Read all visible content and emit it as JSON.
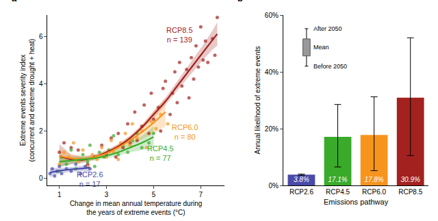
{
  "chart_data": [
    {
      "type": "scatter",
      "panel_label": "a",
      "xlabel": [
        "Change in mean annual temperature during",
        "the years of extreme events (°C)"
      ],
      "ylabel": [
        "Extreme events severity index",
        "(concurrent and extreme drought + heat)"
      ],
      "xlim": [
        0.5,
        8
      ],
      "xticks": [
        1,
        3,
        5,
        7
      ],
      "ylim": [
        -0.3,
        6.9
      ],
      "yticks": [
        0,
        2,
        4,
        6
      ],
      "grid": false,
      "series": [
        {
          "name": "RCP8.5",
          "color": "#a3221f",
          "marker": "circle",
          "x": [
            1.0,
            1.2,
            1.5,
            1.8,
            2.2,
            2.5,
            2.8,
            3.0,
            3.2,
            3.4,
            3.5,
            3.7,
            3.9,
            4.0,
            4.2,
            4.3,
            4.5,
            4.6,
            4.8,
            4.9,
            5.0,
            5.2,
            5.3,
            5.4,
            5.5,
            5.7,
            5.8,
            5.9,
            6.0,
            6.1,
            6.2,
            6.4,
            6.5,
            6.6,
            6.7,
            6.8,
            6.9,
            7.0,
            7.1,
            7.2,
            7.3,
            7.5,
            7.6,
            7.7
          ],
          "values": [
            1.1,
            1.5,
            1.3,
            1.2,
            0.6,
            0.9,
            1.4,
            1.0,
            1.7,
            0.9,
            1.9,
            1.3,
            2.3,
            1.5,
            2.8,
            1.6,
            2.2,
            3.1,
            1.9,
            3.6,
            2.5,
            3.0,
            2.0,
            3.8,
            4.1,
            2.7,
            3.6,
            4.5,
            3.2,
            4.9,
            3.9,
            4.6,
            3.4,
            5.1,
            4.2,
            5.6,
            4.7,
            6.4,
            5.0,
            5.8,
            4.9,
            5.9,
            5.2,
            6.8
          ],
          "fit": {
            "x": [
              1.0,
              1.5,
              2.0,
              2.5,
              3.0,
              3.5,
              4.0,
              4.5,
              5.0,
              5.5,
              6.0,
              6.5,
              7.0,
              7.5,
              7.7
            ],
            "values": [
              0.95,
              0.8,
              0.78,
              0.9,
              1.1,
              1.35,
              1.7,
              2.15,
              2.7,
              3.25,
              3.9,
              4.55,
              5.2,
              5.85,
              6.1
            ],
            "lower": [
              0.5,
              0.6,
              0.65,
              0.8,
              1.0,
              1.25,
              1.6,
              2.05,
              2.55,
              3.1,
              3.7,
              4.3,
              4.9,
              5.45,
              5.6
            ],
            "upper": [
              1.45,
              1.0,
              0.92,
              1.0,
              1.2,
              1.45,
              1.8,
              2.25,
              2.85,
              3.4,
              4.1,
              4.8,
              5.5,
              6.25,
              6.6
            ]
          }
        },
        {
          "name": "RCP6.0",
          "color": "#f7941d",
          "marker": "circle",
          "x": [
            1.0,
            1.2,
            1.4,
            1.6,
            1.8,
            2.0,
            2.2,
            2.4,
            2.6,
            2.8,
            3.0,
            3.2,
            3.3,
            3.5,
            3.6,
            3.8,
            4.0,
            4.1,
            4.3,
            4.5,
            4.7,
            4.9,
            5.1,
            5.3,
            5.6
          ],
          "values": [
            0.6,
            1.1,
            0.9,
            1.5,
            0.7,
            1.2,
            0.5,
            1.0,
            0.8,
            1.3,
            0.9,
            1.6,
            1.1,
            0.8,
            1.5,
            1.9,
            1.4,
            2.3,
            1.7,
            2.0,
            1.3,
            2.4,
            2.1,
            2.7,
            2.3
          ],
          "fit": {
            "x": [
              1.0,
              1.5,
              2.0,
              2.5,
              3.0,
              3.5,
              4.0,
              4.5,
              5.0,
              5.5
            ],
            "values": [
              0.95,
              0.85,
              0.82,
              0.9,
              1.05,
              1.3,
              1.6,
              1.95,
              2.35,
              2.8
            ],
            "lower": [
              0.65,
              0.7,
              0.7,
              0.8,
              0.95,
              1.15,
              1.4,
              1.65,
              1.9,
              2.2
            ],
            "upper": [
              1.25,
              1.0,
              0.94,
              1.0,
              1.15,
              1.45,
              1.8,
              2.25,
              2.8,
              3.4
            ]
          }
        },
        {
          "name": "RCP4.5",
          "color": "#3aaa2a",
          "marker": "circle",
          "x": [
            1.0,
            1.1,
            1.3,
            1.5,
            1.7,
            1.9,
            2.0,
            2.2,
            2.3,
            2.5,
            2.7,
            2.9,
            3.1,
            3.3,
            3.5,
            3.7,
            3.9,
            4.1,
            4.3,
            4.5,
            4.8,
            5.0
          ],
          "values": [
            0.3,
            0.9,
            0.6,
            1.2,
            0.4,
            0.8,
            1.0,
            0.7,
            1.4,
            0.5,
            1.1,
            0.9,
            1.2,
            1.8,
            1.0,
            1.4,
            1.1,
            1.6,
            1.9,
            1.3,
            1.5,
            1.9
          ],
          "fit": {
            "x": [
              1.0,
              1.5,
              2.0,
              2.5,
              3.0,
              3.5,
              4.0,
              4.5,
              5.0
            ],
            "values": [
              0.7,
              0.75,
              0.8,
              0.85,
              0.95,
              1.1,
              1.3,
              1.5,
              1.75
            ],
            "lower": [
              0.45,
              0.6,
              0.7,
              0.75,
              0.85,
              0.95,
              1.1,
              1.2,
              1.3
            ],
            "upper": [
              0.95,
              0.9,
              0.9,
              0.95,
              1.05,
              1.25,
              1.5,
              1.8,
              2.2
            ]
          }
        },
        {
          "name": "RCP2.6",
          "color": "#4a4aa8",
          "marker": "circle",
          "x": [
            0.6,
            0.7,
            0.8,
            0.9,
            1.0,
            1.1,
            1.3,
            1.5,
            1.7,
            1.9,
            2.1,
            2.3
          ],
          "values": [
            0.2,
            0.4,
            0.1,
            0.3,
            0.5,
            0.2,
            0.4,
            0.3,
            0.6,
            0.2,
            0.5,
            0.4
          ],
          "fit": {
            "x": [
              0.6,
              1.0,
              1.5,
              2.0,
              2.3
            ],
            "values": [
              0.25,
              0.32,
              0.38,
              0.42,
              0.45
            ],
            "lower": [
              0.05,
              0.2,
              0.28,
              0.3,
              0.28
            ],
            "upper": [
              0.45,
              0.44,
              0.48,
              0.54,
              0.62
            ]
          }
        }
      ],
      "annotations": [
        {
          "lines": [
            "RCP8.5",
            "n = 139"
          ],
          "x": 6.1,
          "y": 6.05,
          "color": "#a3221f"
        },
        {
          "lines": [
            "RCP6.0",
            "n = 80"
          ],
          "x": 6.35,
          "y": 1.95,
          "color": "#f7941d"
        },
        {
          "lines": [
            "RCP4.5",
            "n = 77"
          ],
          "x": 5.3,
          "y": 1.05,
          "color": "#3aaa2a"
        },
        {
          "lines": [
            "RCP2.6",
            "n = 17"
          ],
          "x": 2.3,
          "y": -0.05,
          "color": "#4a4aa8"
        }
      ]
    },
    {
      "type": "bar",
      "panel_label": "b",
      "xlabel": "Emissions pathway",
      "ylabel": "Annual likelihood of extreme events",
      "categories": [
        "RCP2.6",
        "RCP4.5",
        "RCP6.0",
        "RCP8.5"
      ],
      "values": [
        3.8,
        17.1,
        17.8,
        30.9
      ],
      "value_labels": [
        "3.8%",
        "17.1%",
        "17.8%",
        "30.9%"
      ],
      "data_labels": true,
      "colors": [
        "#4a4aa8",
        "#3aaa2a",
        "#f7941d",
        "#a3221f"
      ],
      "before_2050": [
        3.5,
        6.5,
        5.2,
        10.5
      ],
      "after_2050": [
        4.0,
        28.5,
        31.2,
        52.0
      ],
      "ylim": [
        0,
        60
      ],
      "yticks": [
        {
          "value": 0,
          "label": "0%"
        },
        {
          "value": 20,
          "label": "20%"
        },
        {
          "value": 40,
          "label": "40%"
        },
        {
          "value": 60,
          "label": "60%"
        }
      ],
      "grid": false,
      "inset_labels": {
        "high": "After 2050",
        "mean": "Mean",
        "low": "Before 2050"
      }
    }
  ]
}
